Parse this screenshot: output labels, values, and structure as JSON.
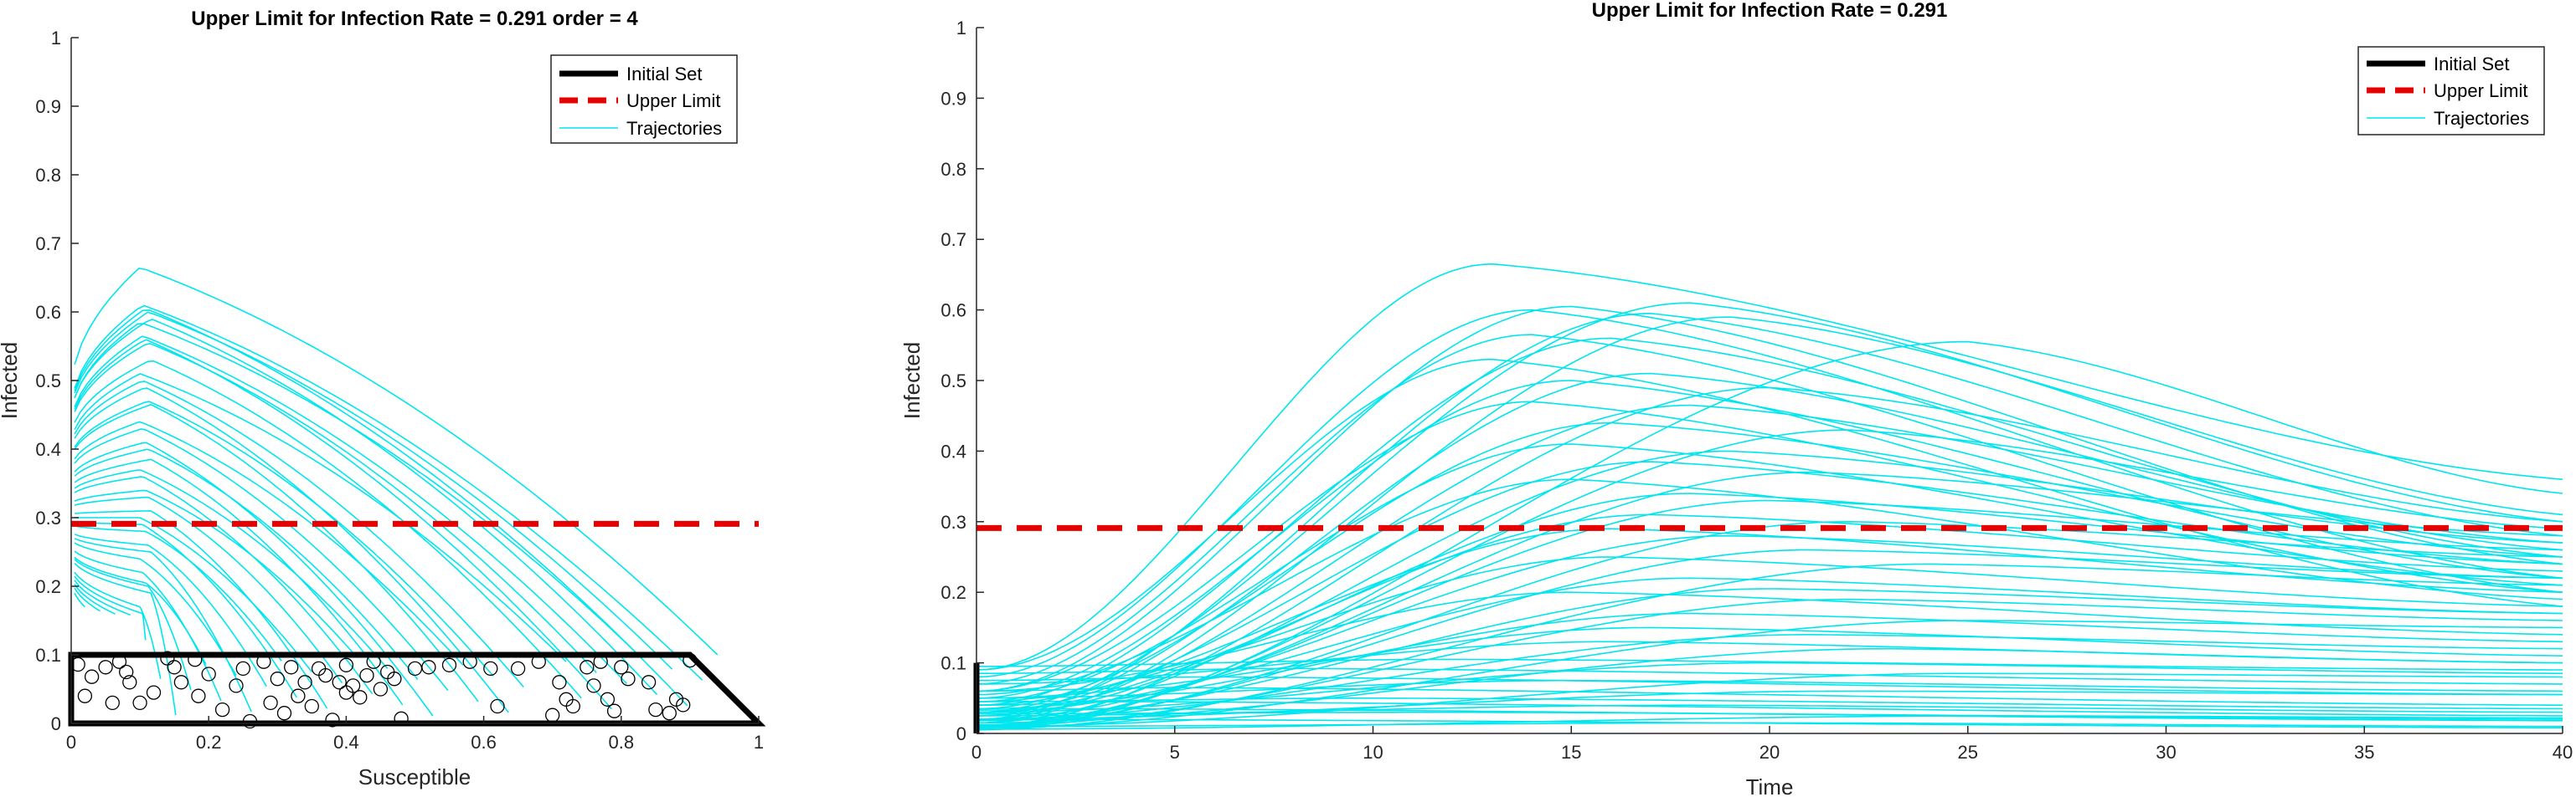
{
  "colors": {
    "trajectory": "#00e5ee",
    "upper_limit": "#e60000",
    "initial_set": "#000000",
    "axis": "#262626",
    "marker": "#000000"
  },
  "chart_data": [
    {
      "type": "line",
      "title": "Upper Limit for Infection Rate = 0.291 order = 4",
      "xlabel": "Susceptible",
      "ylabel": "Infected",
      "xlim": [
        0,
        1
      ],
      "ylim": [
        0,
        1
      ],
      "x_ticks": [
        "0",
        "0.2",
        "0.4",
        "0.6",
        "0.8",
        "1"
      ],
      "y_ticks": [
        "0",
        "0.1",
        "0.2",
        "0.3",
        "0.4",
        "0.5",
        "0.6",
        "0.7",
        "0.8",
        "0.9",
        "1"
      ],
      "grid": false,
      "legend": {
        "position": "top-right",
        "entries": [
          "Initial Set",
          "Upper Limit",
          "Trajectories"
        ]
      },
      "upper_limit": 0.291,
      "initial_set_polygon": [
        [
          0,
          0
        ],
        [
          1,
          0
        ],
        [
          0.9,
          0.1
        ],
        [
          0,
          0.1
        ]
      ],
      "trajectory_peaks": [
        0.665,
        0.61,
        0.605,
        0.6,
        0.59,
        0.585,
        0.565,
        0.56,
        0.555,
        0.53,
        0.51,
        0.5,
        0.49,
        0.47,
        0.465,
        0.44,
        0.43,
        0.41,
        0.4,
        0.385,
        0.37,
        0.36,
        0.34,
        0.33,
        0.31,
        0.3,
        0.29,
        0.28,
        0.26,
        0.25,
        0.24,
        0.22,
        0.205,
        0.2,
        0.19,
        0.17,
        0.16,
        0.15,
        0.14,
        0.13,
        0.12
      ],
      "initial_points": [
        [
          0.01,
          0.086
        ],
        [
          0.02,
          0.04
        ],
        [
          0.03,
          0.068
        ],
        [
          0.05,
          0.082
        ],
        [
          0.06,
          0.03
        ],
        [
          0.07,
          0.09
        ],
        [
          0.08,
          0.075
        ],
        [
          0.085,
          0.06
        ],
        [
          0.1,
          0.03
        ],
        [
          0.12,
          0.045
        ],
        [
          0.14,
          0.095
        ],
        [
          0.15,
          0.082
        ],
        [
          0.16,
          0.06
        ],
        [
          0.18,
          0.093
        ],
        [
          0.185,
          0.04
        ],
        [
          0.2,
          0.072
        ],
        [
          0.22,
          0.02
        ],
        [
          0.24,
          0.055
        ],
        [
          0.25,
          0.08
        ],
        [
          0.26,
          0.003
        ],
        [
          0.28,
          0.09
        ],
        [
          0.29,
          0.03
        ],
        [
          0.3,
          0.065
        ],
        [
          0.31,
          0.015
        ],
        [
          0.32,
          0.082
        ],
        [
          0.33,
          0.04
        ],
        [
          0.34,
          0.06
        ],
        [
          0.35,
          0.025
        ],
        [
          0.36,
          0.08
        ],
        [
          0.37,
          0.07
        ],
        [
          0.38,
          0.005
        ],
        [
          0.39,
          0.06
        ],
        [
          0.4,
          0.085
        ],
        [
          0.4,
          0.045
        ],
        [
          0.41,
          0.055
        ],
        [
          0.42,
          0.038
        ],
        [
          0.43,
          0.07
        ],
        [
          0.44,
          0.09
        ],
        [
          0.45,
          0.05
        ],
        [
          0.46,
          0.075
        ],
        [
          0.47,
          0.065
        ],
        [
          0.48,
          0.007
        ],
        [
          0.5,
          0.08
        ],
        [
          0.52,
          0.082
        ],
        [
          0.55,
          0.085
        ],
        [
          0.58,
          0.09
        ],
        [
          0.61,
          0.08
        ],
        [
          0.62,
          0.025
        ],
        [
          0.65,
          0.08
        ],
        [
          0.68,
          0.09
        ],
        [
          0.7,
          0.012
        ],
        [
          0.71,
          0.06
        ],
        [
          0.72,
          0.035
        ],
        [
          0.73,
          0.025
        ],
        [
          0.75,
          0.082
        ],
        [
          0.76,
          0.055
        ],
        [
          0.77,
          0.09
        ],
        [
          0.78,
          0.035
        ],
        [
          0.79,
          0.018
        ],
        [
          0.8,
          0.082
        ],
        [
          0.81,
          0.065
        ],
        [
          0.84,
          0.06
        ],
        [
          0.85,
          0.02
        ],
        [
          0.87,
          0.015
        ],
        [
          0.88,
          0.035
        ],
        [
          0.89,
          0.027
        ],
        [
          0.9,
          0.092
        ]
      ]
    },
    {
      "type": "line",
      "title": "Upper Limit for Infection Rate = 0.291",
      "xlabel": "Time",
      "ylabel": "Infected",
      "xlim": [
        0,
        40
      ],
      "ylim": [
        0,
        1
      ],
      "x_ticks": [
        "0",
        "5",
        "10",
        "15",
        "20",
        "25",
        "30",
        "35",
        "40"
      ],
      "y_ticks": [
        "0",
        "0.1",
        "0.2",
        "0.3",
        "0.4",
        "0.5",
        "0.6",
        "0.7",
        "0.8",
        "0.9",
        "1"
      ],
      "grid": false,
      "legend": {
        "position": "top-right",
        "entries": [
          "Initial Set",
          "Upper Limit",
          "Trajectories"
        ]
      },
      "upper_limit": 0.291,
      "initial_set_segment": [
        [
          0,
          0
        ],
        [
          0,
          0.1
        ]
      ],
      "trajectories": [
        {
          "peak": 0.665,
          "peak_time": 13,
          "end": 0.36,
          "start": 0.09
        },
        {
          "peak": 0.61,
          "peak_time": 18,
          "end": 0.3,
          "start": 0.03
        },
        {
          "peak": 0.605,
          "peak_time": 15,
          "end": 0.24,
          "start": 0.06
        },
        {
          "peak": 0.6,
          "peak_time": 14,
          "end": 0.22,
          "start": 0.08
        },
        {
          "peak": 0.595,
          "peak_time": 17,
          "end": 0.28,
          "start": 0.02
        },
        {
          "peak": 0.59,
          "peak_time": 19,
          "end": 0.31,
          "start": 0.015
        },
        {
          "peak": 0.565,
          "peak_time": 14,
          "end": 0.2,
          "start": 0.07
        },
        {
          "peak": 0.56,
          "peak_time": 16,
          "end": 0.25,
          "start": 0.04
        },
        {
          "peak": 0.555,
          "peak_time": 25,
          "end": 0.34,
          "start": 0.005
        },
        {
          "peak": 0.53,
          "peak_time": 13,
          "end": 0.18,
          "start": 0.09
        },
        {
          "peak": 0.51,
          "peak_time": 17,
          "end": 0.26,
          "start": 0.025
        },
        {
          "peak": 0.5,
          "peak_time": 15,
          "end": 0.22,
          "start": 0.05
        },
        {
          "peak": 0.49,
          "peak_time": 20,
          "end": 0.3,
          "start": 0.01
        },
        {
          "peak": 0.47,
          "peak_time": 14,
          "end": 0.2,
          "start": 0.06
        },
        {
          "peak": 0.465,
          "peak_time": 18,
          "end": 0.27,
          "start": 0.02
        },
        {
          "peak": 0.44,
          "peak_time": 16,
          "end": 0.25,
          "start": 0.035
        },
        {
          "peak": 0.43,
          "peak_time": 22,
          "end": 0.29,
          "start": 0.008
        },
        {
          "peak": 0.41,
          "peak_time": 15,
          "end": 0.21,
          "start": 0.045
        },
        {
          "peak": 0.4,
          "peak_time": 19,
          "end": 0.27,
          "start": 0.015
        },
        {
          "peak": 0.385,
          "peak_time": 17,
          "end": 0.24,
          "start": 0.03
        },
        {
          "peak": 0.37,
          "peak_time": 21,
          "end": 0.28,
          "start": 0.01
        },
        {
          "peak": 0.36,
          "peak_time": 15,
          "end": 0.19,
          "start": 0.055
        },
        {
          "peak": 0.34,
          "peak_time": 18,
          "end": 0.24,
          "start": 0.025
        },
        {
          "peak": 0.33,
          "peak_time": 20,
          "end": 0.26,
          "start": 0.012
        },
        {
          "peak": 0.31,
          "peak_time": 17,
          "end": 0.23,
          "start": 0.03
        },
        {
          "peak": 0.3,
          "peak_time": 22,
          "end": 0.25,
          "start": 0.01
        },
        {
          "peak": 0.29,
          "peak_time": 16,
          "end": 0.2,
          "start": 0.04
        },
        {
          "peak": 0.28,
          "peak_time": 19,
          "end": 0.22,
          "start": 0.02
        },
        {
          "peak": 0.26,
          "peak_time": 21,
          "end": 0.22,
          "start": 0.012
        },
        {
          "peak": 0.25,
          "peak_time": 16,
          "end": 0.18,
          "start": 0.045
        },
        {
          "peak": 0.24,
          "peak_time": 24,
          "end": 0.21,
          "start": 0.006
        },
        {
          "peak": 0.22,
          "peak_time": 18,
          "end": 0.17,
          "start": 0.03
        },
        {
          "peak": 0.205,
          "peak_time": 20,
          "end": 0.17,
          "start": 0.018
        },
        {
          "peak": 0.2,
          "peak_time": 15,
          "end": 0.14,
          "start": 0.06
        },
        {
          "peak": 0.19,
          "peak_time": 22,
          "end": 0.16,
          "start": 0.01
        },
        {
          "peak": 0.17,
          "peak_time": 18,
          "end": 0.13,
          "start": 0.035
        },
        {
          "peak": 0.16,
          "peak_time": 25,
          "end": 0.15,
          "start": 0.008
        },
        {
          "peak": 0.15,
          "peak_time": 17,
          "end": 0.11,
          "start": 0.05
        },
        {
          "peak": 0.14,
          "peak_time": 21,
          "end": 0.12,
          "start": 0.02
        },
        {
          "peak": 0.13,
          "peak_time": 16,
          "end": 0.1,
          "start": 0.07
        },
        {
          "peak": 0.12,
          "peak_time": 23,
          "end": 0.1,
          "start": 0.015
        },
        {
          "peak": 0.105,
          "peak_time": 12,
          "end": 0.09,
          "start": 0.095
        },
        {
          "peak": 0.1,
          "peak_time": 20,
          "end": 0.085,
          "start": 0.03
        },
        {
          "peak": 0.092,
          "peak_time": 8,
          "end": 0.07,
          "start": 0.085
        },
        {
          "peak": 0.085,
          "peak_time": 25,
          "end": 0.08,
          "start": 0.01
        },
        {
          "peak": 0.08,
          "peak_time": 6,
          "end": 0.055,
          "start": 0.075
        },
        {
          "peak": 0.075,
          "peak_time": 15,
          "end": 0.06,
          "start": 0.05
        },
        {
          "peak": 0.065,
          "peak_time": 5,
          "end": 0.04,
          "start": 0.06
        },
        {
          "peak": 0.06,
          "peak_time": 22,
          "end": 0.055,
          "start": 0.02
        },
        {
          "peak": 0.05,
          "peak_time": 10,
          "end": 0.035,
          "start": 0.045
        },
        {
          "peak": 0.045,
          "peak_time": 4,
          "end": 0.025,
          "start": 0.04
        },
        {
          "peak": 0.04,
          "peak_time": 18,
          "end": 0.03,
          "start": 0.025
        },
        {
          "peak": 0.035,
          "peak_time": 3,
          "end": 0.018,
          "start": 0.033
        },
        {
          "peak": 0.03,
          "peak_time": 12,
          "end": 0.02,
          "start": 0.028
        },
        {
          "peak": 0.025,
          "peak_time": 26,
          "end": 0.022,
          "start": 0.006
        },
        {
          "peak": 0.02,
          "peak_time": 2,
          "end": 0.008,
          "start": 0.018
        },
        {
          "peak": 0.015,
          "peak_time": 20,
          "end": 0.01,
          "start": 0.01
        }
      ]
    }
  ]
}
